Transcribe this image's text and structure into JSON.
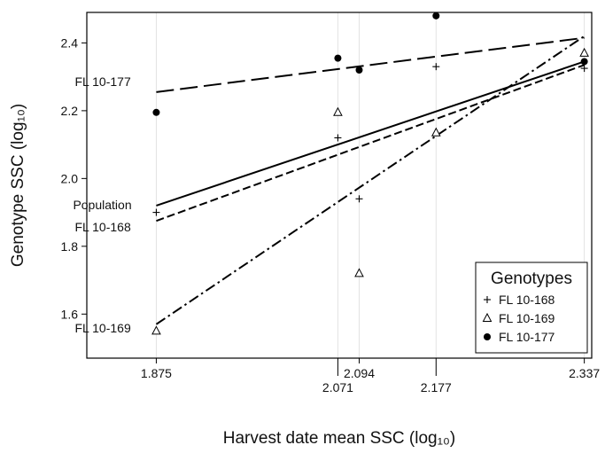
{
  "chart_data": {
    "type": "scatter",
    "title": "",
    "xlabel": "Harvest date mean SSC (log₁₀)",
    "ylabel": "Genotype SSC (log₁₀)",
    "xlim": [
      1.8,
      2.345
    ],
    "ylim": [
      1.47,
      2.49
    ],
    "x_ticks": [
      1.875,
      2.071,
      2.094,
      2.177,
      2.337
    ],
    "x_tick_labels": [
      "1.875",
      "2.071",
      "2.094",
      "2.177",
      "2.337"
    ],
    "y_ticks": [
      1.6,
      1.8,
      2.0,
      2.2,
      2.4
    ],
    "y_tick_labels": [
      "1.6",
      "1.8",
      "2.0",
      "2.2",
      "2.4"
    ],
    "vertical_gridlines": true,
    "legend": {
      "title": "Genotypes",
      "position": "bottom-right",
      "entries": [
        {
          "label": "FL 10-168",
          "marker": "plus"
        },
        {
          "label": "FL 10-169",
          "marker": "triangle"
        },
        {
          "label": "FL 10-177",
          "marker": "circle"
        }
      ]
    },
    "series": [
      {
        "name": "FL 10-168",
        "marker": "plus",
        "points": [
          [
            1.875,
            1.9
          ],
          [
            2.071,
            2.12
          ],
          [
            2.094,
            1.94
          ],
          [
            2.177,
            2.33
          ],
          [
            2.337,
            2.325
          ]
        ],
        "fit": {
          "x": [
            1.875,
            2.337
          ],
          "y": [
            1.875,
            2.335
          ],
          "dash": "short-dash"
        },
        "fit_label": "FL 10-168"
      },
      {
        "name": "FL 10-169",
        "marker": "triangle",
        "points": [
          [
            1.875,
            1.55
          ],
          [
            2.071,
            2.195
          ],
          [
            2.094,
            1.72
          ],
          [
            2.177,
            2.135
          ],
          [
            2.337,
            2.37
          ]
        ],
        "fit": {
          "x": [
            1.875,
            2.337
          ],
          "y": [
            1.57,
            2.42
          ],
          "dash": "dash-dot"
        },
        "fit_label": "FL 10-169"
      },
      {
        "name": "FL 10-177",
        "marker": "circle",
        "points": [
          [
            1.875,
            2.195
          ],
          [
            2.071,
            2.355
          ],
          [
            2.094,
            2.32
          ],
          [
            2.177,
            2.48
          ],
          [
            2.337,
            2.345
          ]
        ],
        "fit": {
          "x": [
            1.875,
            2.337
          ],
          "y": [
            2.255,
            2.415
          ],
          "dash": "long-dash"
        },
        "fit_label": "FL 10-177"
      },
      {
        "fit": {
          "x": [
            1.875,
            2.337
          ],
          "y": [
            1.92,
            2.345
          ],
          "dash": "solid"
        },
        "fit_label": "Population"
      }
    ]
  }
}
